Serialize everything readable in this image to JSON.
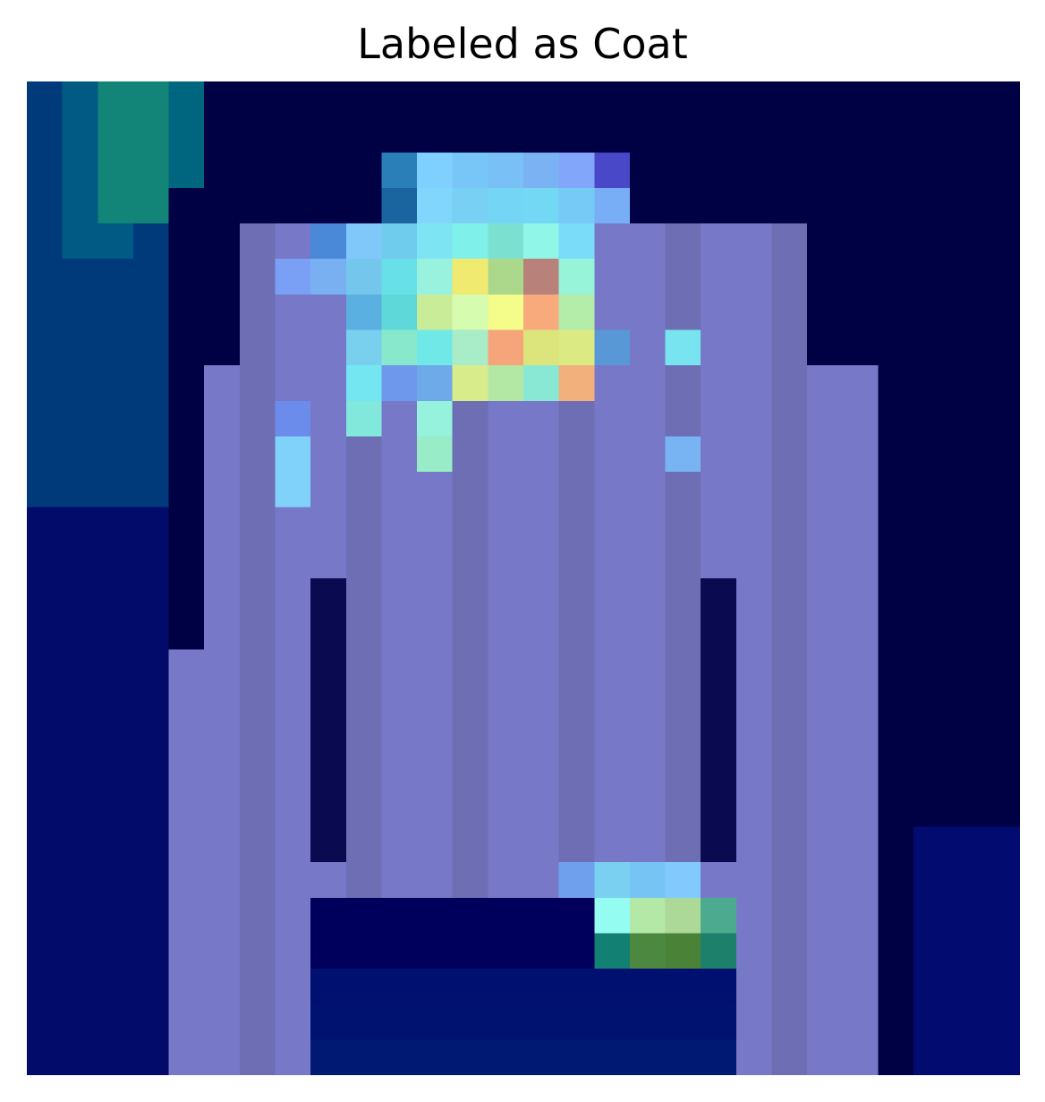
{
  "title": "Labeled as Coat",
  "image": {
    "description_free": true,
    "colormap": "jet",
    "background_color": "#ffffff",
    "rows": 28,
    "cols": 28
  }
}
